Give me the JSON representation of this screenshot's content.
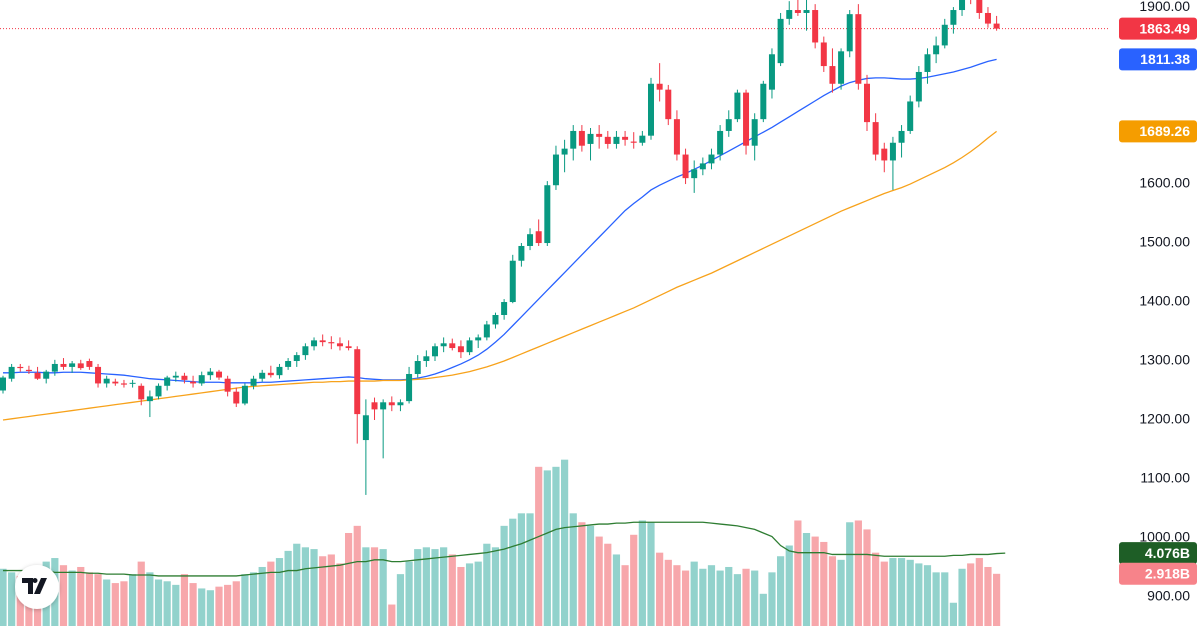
{
  "chart_data": {
    "type": "candlestick",
    "open": [
      1250,
      1270,
      1290,
      1285,
      1280,
      1270,
      1282,
      1295,
      1290,
      1296,
      1300,
      1290,
      1262,
      1265,
      1262,
      1262,
      1258,
      1232,
      1240,
      1258,
      1272,
      1275,
      1265,
      1262,
      1276,
      1282,
      1270,
      1248,
      1228,
      1258,
      1270,
      1280,
      1276,
      1290,
      1300,
      1310,
      1325,
      1335,
      1332,
      1330,
      1325,
      1320,
      1166,
      1230,
      1218,
      1230,
      1225,
      1232,
      1278,
      1300,
      1308,
      1325,
      1330,
      1325,
      1315,
      1335,
      1340,
      1362,
      1378,
      1400,
      1470,
      1495,
      1520,
      1500,
      1598,
      1650,
      1660,
      1690,
      1668,
      1685,
      1680,
      1668,
      1680,
      1672,
      1670,
      1682,
      1770,
      1760,
      1710,
      1650,
      1610,
      1625,
      1635,
      1650,
      1690,
      1710,
      1755,
      1665,
      1710,
      1760,
      1805,
      1880,
      1895,
      1890,
      1895,
      1840,
      1800,
      1770,
      1825,
      1888,
      1770,
      1705,
      1660,
      1640,
      1670,
      1690,
      1740,
      1790,
      1820,
      1835,
      1870,
      1895,
      1925,
      1915,
      1890,
      1872
    ],
    "high": [
      1275,
      1295,
      1295,
      1292,
      1290,
      1285,
      1302,
      1305,
      1300,
      1302,
      1304,
      1295,
      1275,
      1270,
      1268,
      1268,
      1262,
      1250,
      1262,
      1275,
      1282,
      1280,
      1275,
      1282,
      1288,
      1285,
      1275,
      1255,
      1262,
      1275,
      1285,
      1292,
      1295,
      1305,
      1315,
      1330,
      1340,
      1345,
      1342,
      1340,
      1335,
      1325,
      1235,
      1238,
      1235,
      1240,
      1235,
      1290,
      1310,
      1318,
      1330,
      1340,
      1338,
      1335,
      1340,
      1345,
      1368,
      1382,
      1405,
      1480,
      1500,
      1525,
      1540,
      1605,
      1665,
      1675,
      1700,
      1700,
      1695,
      1700,
      1690,
      1690,
      1690,
      1688,
      1690,
      1780,
      1805,
      1768,
      1725,
      1660,
      1640,
      1645,
      1660,
      1700,
      1725,
      1760,
      1760,
      1720,
      1775,
      1830,
      1890,
      1910,
      1915,
      1915,
      1905,
      1850,
      1830,
      1830,
      1895,
      1905,
      1785,
      1720,
      1670,
      1680,
      1700,
      1750,
      1800,
      1830,
      1850,
      1880,
      1900,
      1930,
      1935,
      1930,
      1900,
      1885
    ],
    "low": [
      1245,
      1265,
      1282,
      1278,
      1268,
      1262,
      1275,
      1285,
      1280,
      1285,
      1285,
      1255,
      1255,
      1258,
      1255,
      1255,
      1225,
      1205,
      1235,
      1250,
      1265,
      1262,
      1255,
      1258,
      1268,
      1268,
      1240,
      1222,
      1225,
      1252,
      1265,
      1272,
      1270,
      1285,
      1290,
      1302,
      1318,
      1325,
      1320,
      1318,
      1318,
      1160,
      1073,
      1200,
      1135,
      1215,
      1215,
      1228,
      1272,
      1290,
      1300,
      1315,
      1318,
      1305,
      1310,
      1322,
      1335,
      1355,
      1370,
      1398,
      1460,
      1488,
      1495,
      1495,
      1590,
      1620,
      1640,
      1655,
      1640,
      1660,
      1660,
      1660,
      1665,
      1660,
      1665,
      1675,
      1740,
      1700,
      1640,
      1600,
      1585,
      1615,
      1625,
      1640,
      1680,
      1705,
      1650,
      1640,
      1705,
      1745,
      1800,
      1870,
      1885,
      1860,
      1830,
      1790,
      1755,
      1760,
      1815,
      1760,
      1690,
      1640,
      1620,
      1590,
      1645,
      1685,
      1730,
      1770,
      1805,
      1830,
      1855,
      1885,
      1905,
      1880,
      1865,
      1860
    ],
    "close": [
      1272,
      1290,
      1288,
      1283,
      1270,
      1282,
      1295,
      1290,
      1296,
      1288,
      1290,
      1262,
      1270,
      1262,
      1260,
      1263,
      1235,
      1240,
      1258,
      1272,
      1275,
      1268,
      1262,
      1276,
      1282,
      1272,
      1248,
      1228,
      1258,
      1270,
      1280,
      1276,
      1290,
      1300,
      1310,
      1325,
      1335,
      1332,
      1330,
      1325,
      1322,
      1210,
      1208,
      1218,
      1230,
      1225,
      1230,
      1278,
      1300,
      1308,
      1325,
      1330,
      1322,
      1315,
      1335,
      1340,
      1362,
      1378,
      1400,
      1470,
      1495,
      1515,
      1500,
      1598,
      1650,
      1660,
      1690,
      1665,
      1685,
      1680,
      1668,
      1680,
      1675,
      1670,
      1682,
      1770,
      1760,
      1710,
      1650,
      1610,
      1625,
      1635,
      1650,
      1690,
      1710,
      1755,
      1665,
      1710,
      1770,
      1820,
      1880,
      1895,
      1890,
      1895,
      1840,
      1800,
      1770,
      1825,
      1888,
      1770,
      1705,
      1650,
      1640,
      1670,
      1690,
      1740,
      1790,
      1820,
      1835,
      1870,
      1895,
      1925,
      1915,
      1890,
      1872,
      1863.49
    ],
    "up_color": "#089981",
    "down_color": "#f23645",
    "ylim": [
      844,
      1912
    ],
    "yticks": [
      {
        "value": 900,
        "label": "900.00"
      },
      {
        "value": 1000,
        "label": "1000.00"
      },
      {
        "value": 1100,
        "label": "1100.00"
      },
      {
        "value": 1200,
        "label": "1200.00"
      },
      {
        "value": 1300,
        "label": "1300.00"
      },
      {
        "value": 1400,
        "label": "1400.00"
      },
      {
        "value": 1500,
        "label": "1500.00"
      },
      {
        "value": 1600,
        "label": "1600.00"
      },
      {
        "value": 1900,
        "label": "1900.00"
      }
    ],
    "overlays": [
      {
        "color": "#2962ff",
        "values": [
          1280,
          1280,
          1281,
          1281,
          1281,
          1280,
          1280,
          1281,
          1281,
          1281,
          1280,
          1279,
          1278,
          1277,
          1276,
          1274,
          1272,
          1270,
          1269,
          1268,
          1267,
          1266,
          1265,
          1264,
          1264,
          1264,
          1263,
          1263,
          1263,
          1263,
          1264,
          1264,
          1265,
          1266,
          1267,
          1268,
          1269,
          1270,
          1271,
          1272,
          1273,
          1272,
          1270,
          1269,
          1268,
          1268,
          1268,
          1269,
          1271,
          1274,
          1278,
          1283,
          1289,
          1295,
          1302,
          1310,
          1320,
          1332,
          1345,
          1360,
          1375,
          1390,
          1405,
          1420,
          1435,
          1450,
          1465,
          1480,
          1495,
          1510,
          1525,
          1540,
          1555,
          1567,
          1578,
          1590,
          1598,
          1605,
          1612,
          1618,
          1625,
          1632,
          1640,
          1648,
          1656,
          1664,
          1672,
          1680,
          1688,
          1696,
          1705,
          1714,
          1723,
          1732,
          1741,
          1750,
          1758,
          1766,
          1772,
          1776,
          1779,
          1780,
          1780,
          1779,
          1778,
          1778,
          1779,
          1781,
          1784,
          1787,
          1790,
          1794,
          1798,
          1803,
          1808,
          1811.38
        ]
      },
      {
        "color": "#f7a21b",
        "values": [
          1200,
          1202,
          1204,
          1206,
          1208,
          1210,
          1212,
          1214,
          1216,
          1218,
          1220,
          1222,
          1224,
          1226,
          1228,
          1230,
          1232,
          1234,
          1236,
          1238,
          1240,
          1242,
          1244,
          1246,
          1248,
          1250,
          1252,
          1254,
          1256,
          1257,
          1258,
          1259,
          1260,
          1261,
          1262,
          1263,
          1264,
          1264,
          1265,
          1265,
          1266,
          1266,
          1266,
          1266,
          1267,
          1267,
          1267,
          1268,
          1269,
          1270,
          1272,
          1274,
          1276,
          1279,
          1282,
          1286,
          1290,
          1295,
          1300,
          1306,
          1312,
          1318,
          1324,
          1330,
          1336,
          1342,
          1348,
          1354,
          1360,
          1366,
          1372,
          1378,
          1384,
          1390,
          1397,
          1404,
          1411,
          1418,
          1425,
          1431,
          1437,
          1443,
          1449,
          1456,
          1463,
          1470,
          1477,
          1484,
          1491,
          1498,
          1505,
          1512,
          1519,
          1526,
          1533,
          1540,
          1547,
          1554,
          1560,
          1566,
          1572,
          1578,
          1584,
          1589,
          1594,
          1600,
          1607,
          1614,
          1621,
          1628,
          1636,
          1645,
          1655,
          1666,
          1678,
          1689.26
        ]
      }
    ],
    "price_labels": [
      {
        "value": 1863.49,
        "color": "#f23645"
      },
      {
        "value": 1811.38,
        "color": "#2962ff"
      },
      {
        "value": 1689.26,
        "color": "#f59d00"
      }
    ],
    "volume": {
      "values": [
        3.2,
        3.0,
        2.8,
        3.1,
        2.9,
        3.6,
        3.8,
        3.4,
        3.1,
        3.3,
        3.0,
        2.9,
        2.6,
        2.4,
        2.5,
        2.9,
        3.6,
        3.0,
        2.6,
        2.5,
        2.3,
        2.9,
        2.4,
        2.1,
        2.0,
        2.2,
        2.3,
        2.5,
        2.9,
        3.0,
        3.3,
        3.6,
        3.8,
        4.2,
        4.6,
        4.4,
        4.3,
        3.9,
        4.0,
        3.5,
        5.2,
        5.6,
        4.4,
        4.4,
        4.3,
        1.2,
        2.9,
        3.6,
        4.3,
        4.4,
        4.3,
        4.4,
        4.0,
        3.3,
        3.5,
        3.6,
        4.6,
        4.4,
        5.6,
        6.0,
        6.3,
        6.3,
        8.9,
        8.7,
        8.9,
        9.3,
        6.3,
        5.8,
        5.6,
        5.0,
        4.6,
        4.0,
        3.4,
        5.1,
        5.9,
        5.8,
        4.1,
        3.7,
        3.4,
        3.1,
        3.6,
        3.2,
        3.4,
        3.1,
        3.3,
        2.9,
        3.2,
        3.1,
        1.8,
        3.0,
        3.9,
        4.5,
        5.9,
        5.2,
        5.0,
        4.7,
        3.9,
        3.7,
        5.8,
        5.9,
        5.4,
        4.1,
        3.6,
        3.8,
        3.8,
        3.7,
        3.5,
        3.4,
        3.0,
        3.0,
        1.3,
        3.2,
        3.5,
        3.8,
        3.3,
        2.918
      ],
      "up_color": "#92d2cc",
      "down_color": "#f7a7ab",
      "ma": [
        3.1,
        3.1,
        3.1,
        3.1,
        3.1,
        3.1,
        3.0,
        3.0,
        3.0,
        3.0,
        2.95,
        2.95,
        2.9,
        2.9,
        2.9,
        2.85,
        2.85,
        2.85,
        2.8,
        2.8,
        2.8,
        2.8,
        2.8,
        2.8,
        2.8,
        2.8,
        2.8,
        2.8,
        2.85,
        2.9,
        2.95,
        3.0,
        3.0,
        3.1,
        3.1,
        3.2,
        3.25,
        3.3,
        3.35,
        3.4,
        3.5,
        3.6,
        3.6,
        3.7,
        3.7,
        3.6,
        3.6,
        3.65,
        3.7,
        3.75,
        3.8,
        3.85,
        3.9,
        3.95,
        4.0,
        4.05,
        4.1,
        4.2,
        4.3,
        4.45,
        4.6,
        4.8,
        5.0,
        5.2,
        5.4,
        5.5,
        5.55,
        5.6,
        5.65,
        5.7,
        5.7,
        5.75,
        5.75,
        5.8,
        5.8,
        5.8,
        5.8,
        5.8,
        5.8,
        5.8,
        5.8,
        5.8,
        5.75,
        5.7,
        5.65,
        5.6,
        5.5,
        5.4,
        5.2,
        5.0,
        4.5,
        4.2,
        4.1,
        4.1,
        4.1,
        4.1,
        4.0,
        4.0,
        4.0,
        4.0,
        4.0,
        3.95,
        3.9,
        3.9,
        3.9,
        3.9,
        3.9,
        3.9,
        3.9,
        3.9,
        3.95,
        3.95,
        4.0,
        4.0,
        4.0,
        4.05,
        4.076
      ],
      "ma_color": "#2e7d32",
      "ylim": [
        0,
        35
      ],
      "labels": [
        {
          "value": 4.076,
          "label": "4.076B",
          "color": "#1e5e26"
        },
        {
          "value": 2.918,
          "label": "2.918B",
          "color": "#f7838a"
        }
      ]
    }
  }
}
